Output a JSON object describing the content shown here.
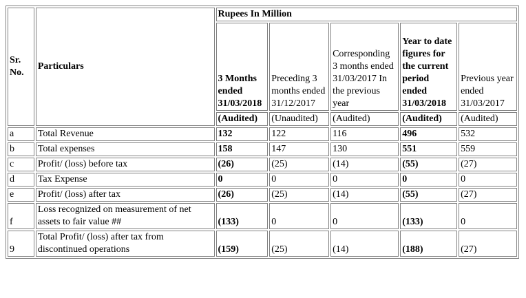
{
  "table": {
    "unit_header": "Rupees In Million",
    "sr_no_header": "Sr. No.",
    "particulars_header": "Particulars",
    "columns": [
      {
        "label": "3 Months ended 31/03/2018",
        "bold": true,
        "status": "(Audited)"
      },
      {
        "label": "Preceding 3 months ended 31/12/2017",
        "bold": false,
        "status": "(Unaudited)"
      },
      {
        "label": "Corresponding 3 months ended 31/03/2017 In the previous year",
        "bold": false,
        "status": "(Audited)"
      },
      {
        "label": "Year to date figures for the current period ended 31/03/2018",
        "bold": true,
        "status": "(Audited)"
      },
      {
        "label": "Previous year ended 31/03/2017",
        "bold": false,
        "status": "(Audited)"
      }
    ],
    "rows": [
      {
        "sr": "a",
        "particular": "Total Revenue",
        "values": [
          "132",
          "122",
          "116",
          "496",
          "532"
        ]
      },
      {
        "sr": "b",
        "particular": "Total expenses",
        "values": [
          "158",
          "147",
          "130",
          "551",
          "559"
        ]
      },
      {
        "sr": "c",
        "particular": "Profit/ (loss) before tax",
        "values": [
          "(26)",
          "(25)",
          "(14)",
          "(55)",
          "(27)"
        ]
      },
      {
        "sr": "d",
        "particular": "Tax Expense",
        "values": [
          "0",
          "0",
          "0",
          "0",
          "0"
        ]
      },
      {
        "sr": "e",
        "particular": "Profit/ (loss) after tax",
        "values": [
          "(26)",
          "(25)",
          "(14)",
          "(55)",
          "(27)"
        ]
      },
      {
        "sr": "f",
        "particular": "Loss recognized on measurement of net assets to fair value ##",
        "values": [
          "(133)",
          "0",
          "0",
          "(133)",
          "0"
        ]
      },
      {
        "sr": "9",
        "particular": "Total Profit/ (loss) after tax from discontinued operations",
        "values": [
          "(159)",
          "(25)",
          "(14)",
          "(188)",
          "(27)"
        ]
      }
    ]
  }
}
